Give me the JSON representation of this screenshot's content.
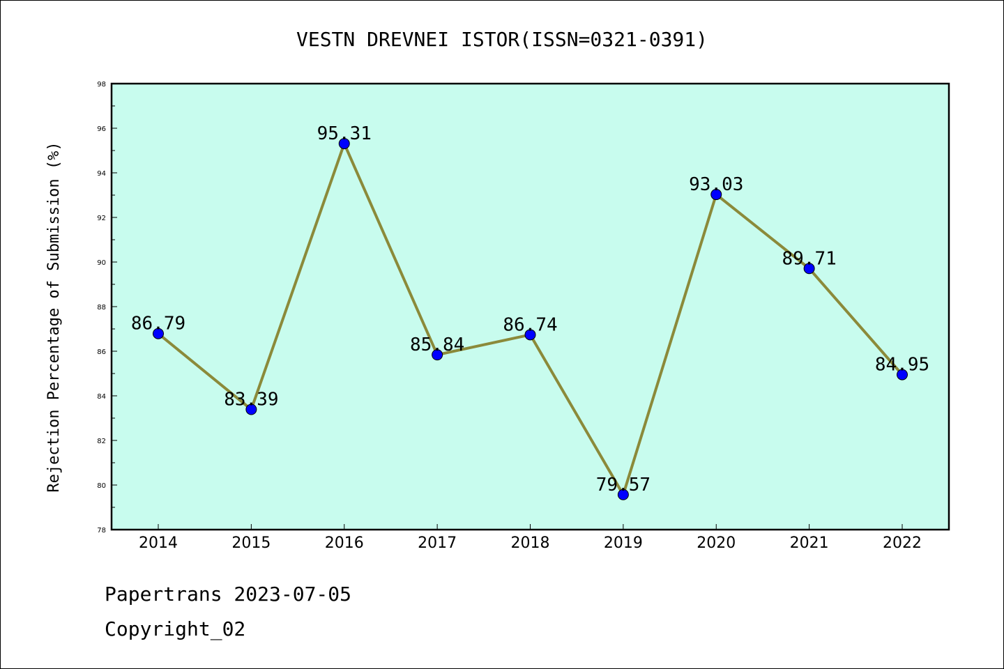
{
  "chart_data": {
    "type": "line",
    "title": "VESTN DREVNEI ISTOR(ISSN=0321-0391)",
    "xlabel": "",
    "ylabel": "Rejection Percentage of Submission (%)",
    "categories": [
      "2014",
      "2015",
      "2016",
      "2017",
      "2018",
      "2019",
      "2020",
      "2021",
      "2022"
    ],
    "values": [
      86.79,
      83.39,
      95.31,
      85.84,
      86.74,
      79.57,
      93.03,
      89.71,
      84.95
    ],
    "data_labels": [
      "86.79",
      "83.39",
      "95.31",
      "85.84",
      "86.74",
      "79.57",
      "93.03",
      "89.71",
      "84.95"
    ],
    "ylim": [
      78,
      98
    ],
    "yticks": [
      "78",
      "80",
      "82",
      "84",
      "86",
      "88",
      "90",
      "92",
      "94",
      "96",
      "98"
    ],
    "grid": false,
    "colors": {
      "plot_background": "#c8fcee",
      "line": "#8b8a3a",
      "marker": "#0000ff"
    }
  },
  "footer": {
    "source": "Papertrans 2023-07-05",
    "copyright": "Copyright_02"
  }
}
